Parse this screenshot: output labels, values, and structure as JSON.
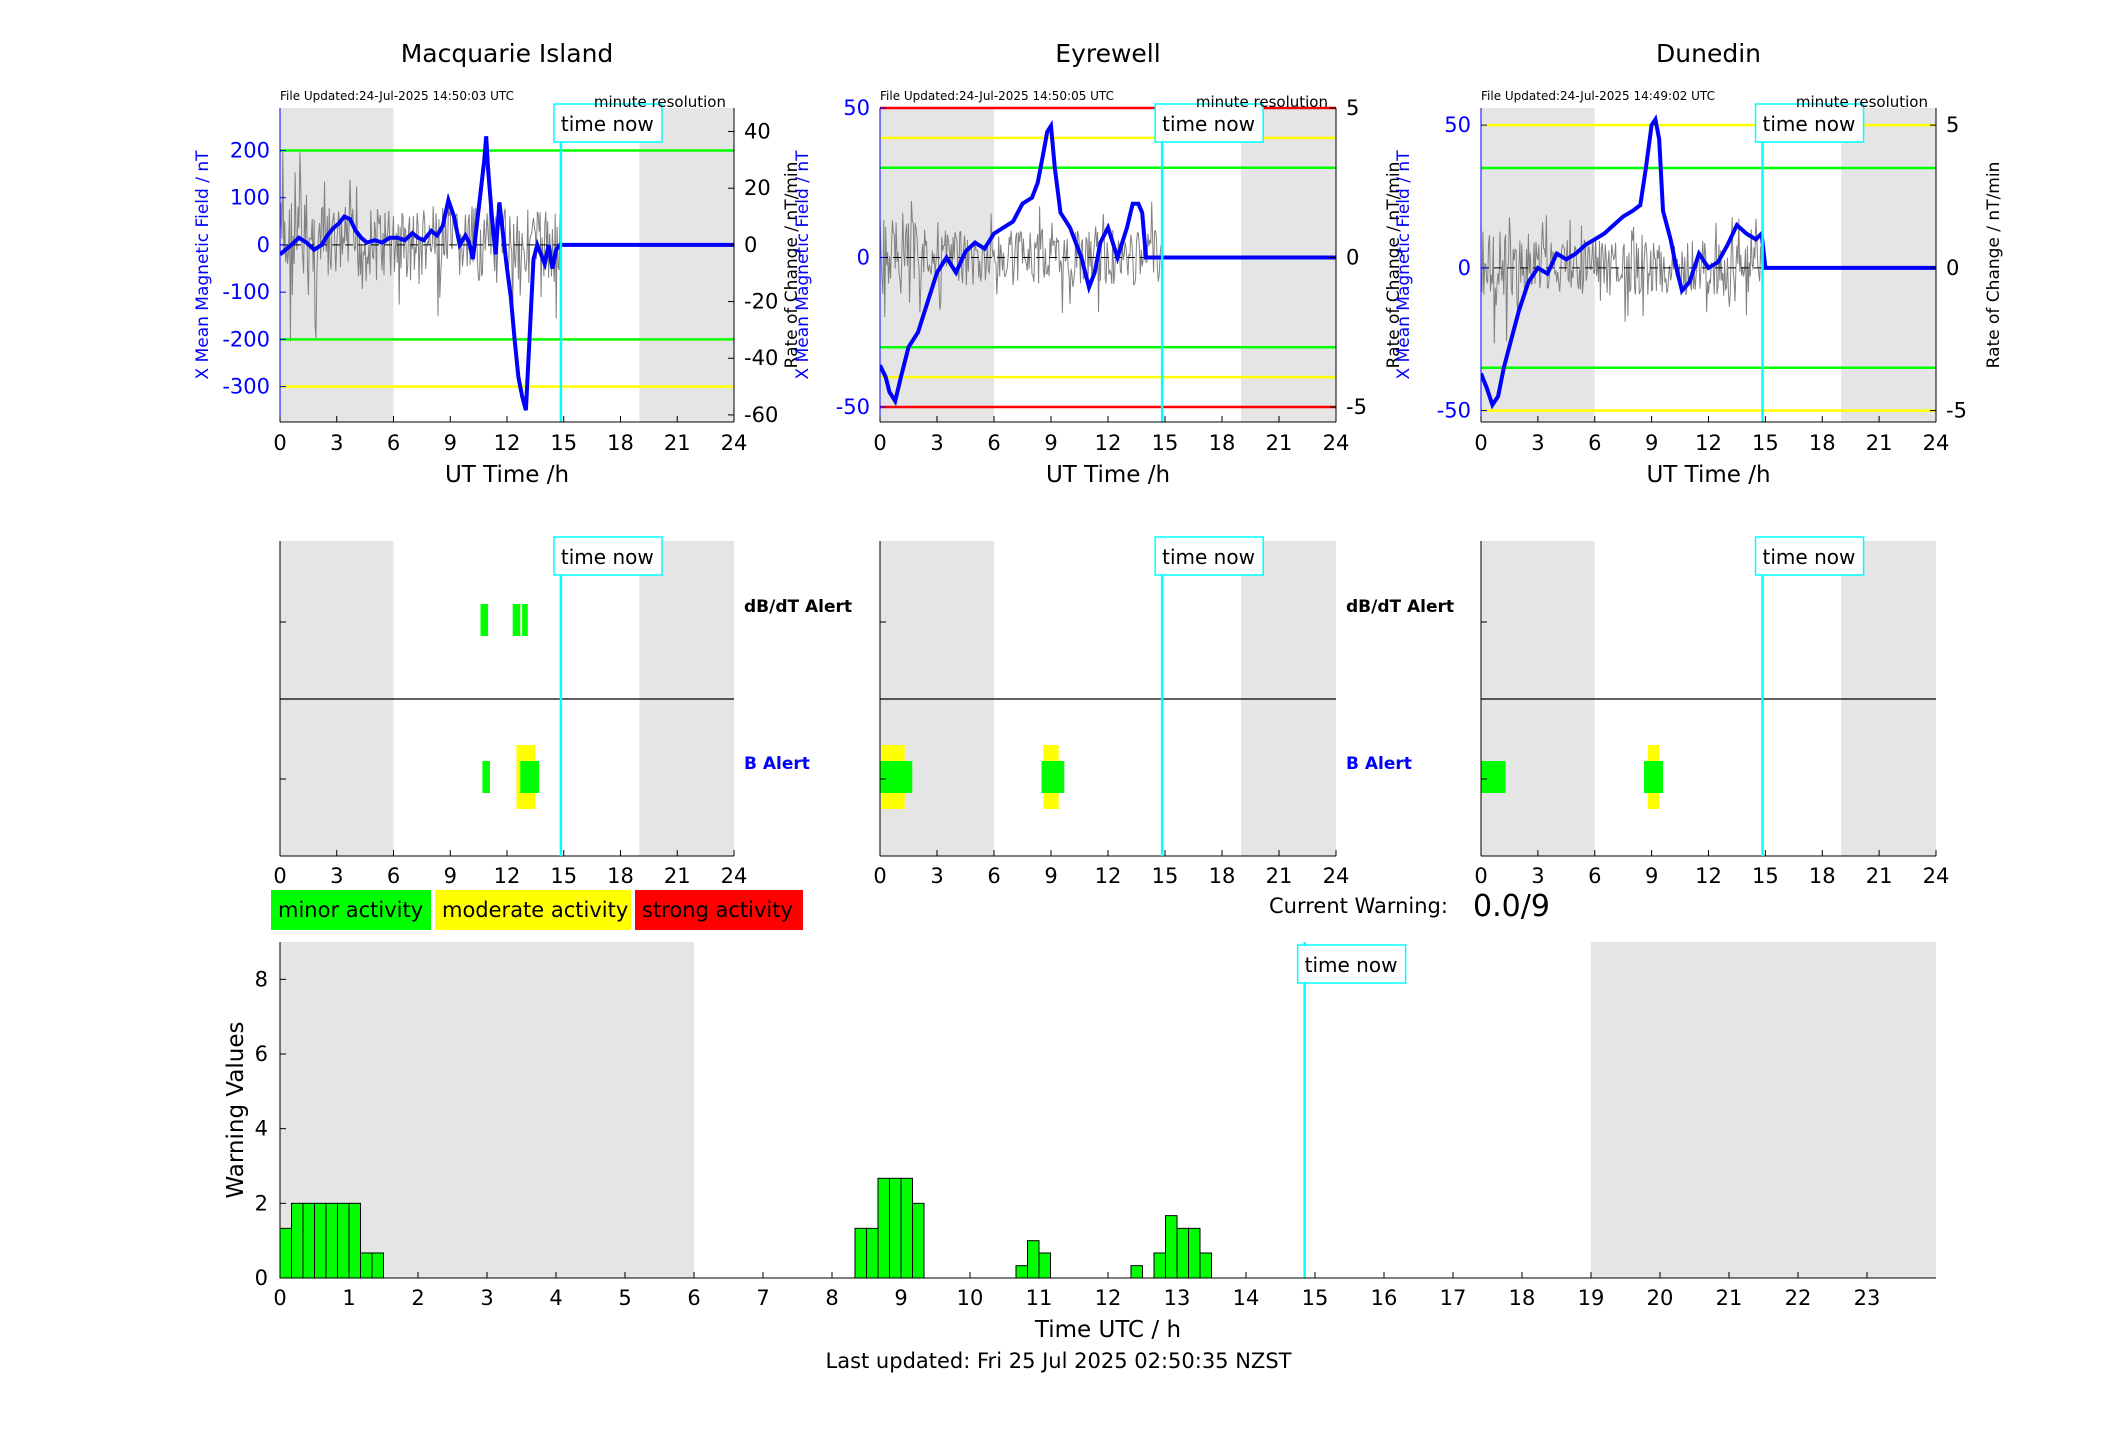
{
  "page": {
    "last_updated": "Last updated: Fri 25 Jul 2025 02:50:35 NZST",
    "current_warning_label": "Current Warning:",
    "current_warning_value": "0.0/9",
    "time_now_label": "time now",
    "now_hour": 14.85,
    "night_shading": [
      [
        0,
        6
      ],
      [
        19,
        24
      ]
    ],
    "colors": {
      "minor": "#00ff00",
      "moderate": "#ffff00",
      "strong": "#ff0000",
      "field": "#0000ff",
      "now": "#00ffff",
      "shade": "#e5e5e5",
      "rate": "#808080"
    },
    "legend": [
      {
        "label": "minor activity",
        "color": "#00ff00"
      },
      {
        "label": "moderate activity",
        "color": "#ffff00"
      },
      {
        "label": "strong activity",
        "color": "#ff0000"
      }
    ]
  },
  "chart_data": [
    {
      "type": "line",
      "title": "Macquarie Island",
      "file_updated": "File Updated:24-Jul-2025 14:50:03 UTC",
      "resolution": "minute resolution",
      "xlabel": "UT Time /h",
      "ylabel": "X Mean Magnetic Field / nT",
      "y2label": "Rate of Change / nT/min",
      "xlim": [
        0,
        24
      ],
      "xticks": [
        0,
        3,
        6,
        9,
        12,
        15,
        18,
        21,
        24
      ],
      "ylim": [
        -375,
        290
      ],
      "yticks": [
        -300,
        -200,
        -100,
        0,
        100,
        200
      ],
      "y2lim": [
        -62.5,
        48.3
      ],
      "y2ticks": [
        -60,
        -40,
        -20,
        0,
        20,
        40
      ],
      "thresholds": [
        {
          "value": 200,
          "color": "#00ff00"
        },
        {
          "value": -200,
          "color": "#00ff00"
        },
        {
          "value": -300,
          "color": "#ffff00"
        }
      ],
      "series": [
        {
          "x": [
            0,
            0.3,
            0.6,
            1,
            1.4,
            1.8,
            2.2,
            2.5,
            2.8,
            3.1,
            3.4,
            3.7,
            4,
            4.3,
            4.6,
            5,
            5.4,
            5.8,
            6.2,
            6.6,
            7,
            7.3,
            7.6,
            8,
            8.3,
            8.6,
            8.9,
            9.2,
            9.5,
            9.8,
            10,
            10.2,
            10.4,
            10.6,
            10.8,
            10.9,
            11,
            11.2,
            11.4,
            11.6,
            11.8,
            12,
            12.2,
            12.4,
            12.6,
            12.8,
            13,
            13.2,
            13.4,
            13.6,
            13.8,
            14,
            14.2,
            14.4,
            14.6,
            14.8,
            15,
            24
          ],
          "values": [
            -20,
            -10,
            0,
            15,
            5,
            -10,
            0,
            20,
            35,
            45,
            60,
            55,
            30,
            15,
            5,
            10,
            5,
            15,
            15,
            10,
            25,
            15,
            10,
            30,
            20,
            40,
            95,
            60,
            0,
            20,
            5,
            -30,
            40,
            110,
            180,
            230,
            160,
            60,
            -20,
            90,
            20,
            -50,
            -110,
            -200,
            -280,
            -320,
            -350,
            -190,
            -30,
            0,
            -20,
            -40,
            0,
            -50,
            -10,
            0,
            0,
            0
          ]
        }
      ]
    },
    {
      "type": "line",
      "title": "Eyrewell",
      "file_updated": "File Updated:24-Jul-2025 14:50:05 UTC",
      "resolution": "minute resolution",
      "xlabel": "UT Time /h",
      "ylabel": "X Mean Magnetic Field / nT",
      "y2label": "Rate of Change / nT/min",
      "xlim": [
        0,
        24
      ],
      "xticks": [
        0,
        3,
        6,
        9,
        12,
        15,
        18,
        21,
        24
      ],
      "ylim": [
        -55,
        50
      ],
      "yticks": [
        -50,
        0,
        50
      ],
      "y2lim": [
        -5.5,
        5
      ],
      "y2ticks": [
        -5,
        0,
        5
      ],
      "thresholds": [
        {
          "value": 50,
          "color": "#ff0000"
        },
        {
          "value": 40,
          "color": "#ffff00"
        },
        {
          "value": 30,
          "color": "#00ff00"
        },
        {
          "value": -30,
          "color": "#00ff00"
        },
        {
          "value": -40,
          "color": "#ffff00"
        },
        {
          "value": -50,
          "color": "#ff0000"
        }
      ],
      "series": [
        {
          "x": [
            0,
            0.3,
            0.5,
            0.8,
            1.1,
            1.5,
            2,
            2.5,
            3,
            3.5,
            4,
            4.5,
            5,
            5.5,
            6,
            6.5,
            7,
            7.5,
            8,
            8.3,
            8.6,
            8.8,
            9,
            9.2,
            9.5,
            10,
            10.3,
            10.6,
            11,
            11.3,
            11.6,
            12,
            12.5,
            13,
            13.3,
            13.6,
            13.8,
            14,
            15,
            24
          ],
          "values": [
            -36,
            -40,
            -45,
            -48,
            -40,
            -30,
            -25,
            -15,
            -5,
            0,
            -5,
            2,
            5,
            3,
            8,
            10,
            12,
            18,
            20,
            25,
            35,
            42,
            44,
            30,
            15,
            10,
            5,
            0,
            -10,
            -5,
            5,
            10,
            0,
            10,
            18,
            18,
            15,
            0,
            0,
            0
          ]
        }
      ]
    },
    {
      "type": "line",
      "title": "Dunedin",
      "file_updated": "File Updated:24-Jul-2025 14:49:02 UTC",
      "resolution": "minute resolution",
      "xlabel": "UT Time /h",
      "ylabel": "X Mean Magnetic Field / nT",
      "y2label": "Rate of Change / nT/min",
      "xlim": [
        0,
        24
      ],
      "xticks": [
        0,
        3,
        6,
        9,
        12,
        15,
        18,
        21,
        24
      ],
      "ylim": [
        -54,
        56
      ],
      "yticks": [
        -50,
        0,
        50
      ],
      "y2lim": [
        -5.4,
        5.6
      ],
      "y2ticks": [
        -5,
        0,
        5
      ],
      "thresholds": [
        {
          "value": 50,
          "color": "#ffff00"
        },
        {
          "value": 35,
          "color": "#00ff00"
        },
        {
          "value": -35,
          "color": "#00ff00"
        },
        {
          "value": -50,
          "color": "#ffff00"
        }
      ],
      "series": [
        {
          "x": [
            0,
            0.3,
            0.6,
            0.9,
            1.2,
            1.6,
            2,
            2.5,
            3,
            3.5,
            4,
            4.5,
            5,
            5.5,
            6,
            6.5,
            7,
            7.5,
            8,
            8.4,
            8.7,
            9,
            9.2,
            9.4,
            9.6,
            10,
            10.3,
            10.6,
            11,
            11.5,
            12,
            12.5,
            13,
            13.5,
            14,
            14.5,
            14.8,
            15,
            24
          ],
          "values": [
            -37,
            -42,
            -48,
            -45,
            -35,
            -25,
            -15,
            -5,
            0,
            -2,
            5,
            3,
            5,
            8,
            10,
            12,
            15,
            18,
            20,
            22,
            35,
            50,
            52,
            45,
            20,
            10,
            0,
            -8,
            -5,
            5,
            0,
            2,
            8,
            15,
            12,
            10,
            12,
            0,
            0
          ]
        }
      ]
    },
    {
      "type": "bar",
      "title": "",
      "kind": "alert_panel",
      "labels": [
        "dB/dT Alert",
        "B Alert"
      ],
      "xlim": [
        0,
        24
      ],
      "xticks": [
        0,
        3,
        6,
        9,
        12,
        15,
        18,
        21,
        24
      ],
      "dbdt_alert": [
        {
          "start": 10.6,
          "end": 11.0,
          "level": "minor"
        },
        {
          "start": 12.3,
          "end": 12.7,
          "level": "minor"
        },
        {
          "start": 12.8,
          "end": 13.1,
          "level": "minor"
        }
      ],
      "b_alert": [
        {
          "start": 10.7,
          "end": 11.1,
          "level": "minor"
        },
        {
          "start": 12.5,
          "end": 13.5,
          "level": "moderate"
        },
        {
          "start": 12.7,
          "end": 13.7,
          "level": "minor"
        }
      ]
    },
    {
      "type": "bar",
      "title": "",
      "kind": "alert_panel",
      "labels": [
        "dB/dT Alert",
        "B Alert"
      ],
      "xlim": [
        0,
        24
      ],
      "xticks": [
        0,
        3,
        6,
        9,
        12,
        15,
        18,
        21,
        24
      ],
      "dbdt_alert": [],
      "b_alert": [
        {
          "start": 0.1,
          "end": 1.3,
          "level": "moderate"
        },
        {
          "start": 0,
          "end": 1.7,
          "level": "minor"
        },
        {
          "start": 8.6,
          "end": 9.4,
          "level": "moderate"
        },
        {
          "start": 8.5,
          "end": 9.7,
          "level": "minor"
        }
      ]
    },
    {
      "type": "bar",
      "title": "",
      "kind": "alert_panel",
      "labels": [],
      "xlim": [
        0,
        24
      ],
      "xticks": [
        0,
        3,
        6,
        9,
        12,
        15,
        18,
        21,
        24
      ],
      "dbdt_alert": [],
      "b_alert": [
        {
          "start": 0,
          "end": 1.3,
          "level": "minor"
        },
        {
          "start": 8.8,
          "end": 9.4,
          "level": "moderate"
        },
        {
          "start": 8.6,
          "end": 9.6,
          "level": "minor"
        }
      ]
    },
    {
      "type": "bar",
      "title": "",
      "xlabel": "Time UTC / h",
      "ylabel": "Warning Values",
      "xlim": [
        0,
        24
      ],
      "xticks": [
        0,
        1,
        2,
        3,
        4,
        5,
        6,
        7,
        8,
        9,
        10,
        11,
        12,
        13,
        14,
        15,
        16,
        17,
        18,
        19,
        20,
        21,
        22,
        23
      ],
      "ylim": [
        0,
        9
      ],
      "yticks": [
        0,
        2,
        4,
        6,
        8
      ],
      "bar_width_h": 0.1667,
      "series": [
        {
          "name": "",
          "x": [
            0,
            0.1667,
            0.3333,
            0.5,
            0.6667,
            0.8333,
            1.0,
            1.1667,
            1.3333,
            8.3333,
            8.5,
            8.6667,
            8.8333,
            9.0,
            9.1667,
            10.6667,
            10.8333,
            11.0,
            12.3333,
            12.6667,
            12.8333,
            13.0,
            13.1667,
            13.3333
          ],
          "values": [
            1.33,
            2,
            2,
            2,
            2,
            2,
            2,
            0.67,
            0.67,
            1.33,
            1.33,
            2.67,
            2.67,
            2.67,
            2,
            0.33,
            1,
            0.67,
            0.33,
            0.67,
            1.67,
            1.33,
            1.33,
            0.67
          ]
        }
      ]
    }
  ]
}
